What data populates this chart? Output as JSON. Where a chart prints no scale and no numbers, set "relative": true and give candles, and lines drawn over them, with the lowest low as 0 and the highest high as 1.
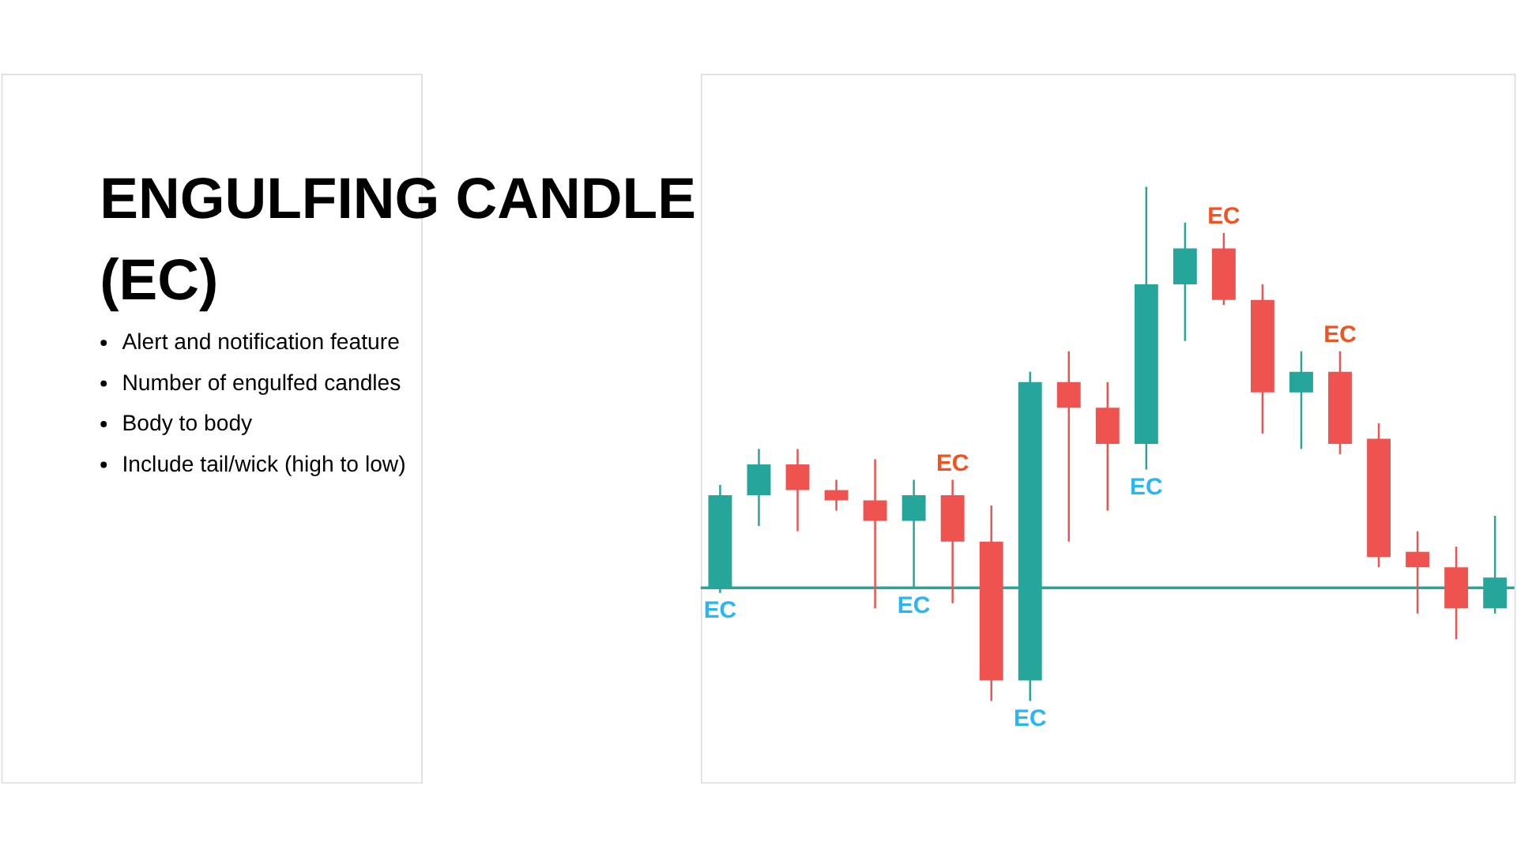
{
  "chart_data": [
    {
      "type": "other",
      "title": "ENGULFING CANDLE (EC)",
      "annotations": [
        "Alert and notification feature",
        "Number of engulfed candles",
        "Body to body",
        "Include tail/wick (high to low)"
      ]
    },
    {
      "type": "candlestick",
      "relative": true,
      "categories": [
        null,
        null,
        null,
        null,
        null,
        null,
        null,
        null,
        null,
        null,
        null,
        null,
        null,
        null,
        null,
        null,
        null,
        null,
        null,
        null,
        null
      ],
      "ohlc": [
        [
          0.22,
          0.42,
          0.21,
          0.4
        ],
        [
          0.4,
          0.49,
          0.34,
          0.46
        ],
        [
          0.46,
          0.49,
          0.33,
          0.41
        ],
        [
          0.41,
          0.43,
          0.37,
          0.39
        ],
        [
          0.39,
          0.47,
          0.18,
          0.35
        ],
        [
          0.35,
          0.43,
          0.22,
          0.4
        ],
        [
          0.4,
          0.43,
          0.19,
          0.31
        ],
        [
          0.31,
          0.38,
          0.0,
          0.04
        ],
        [
          0.04,
          0.64,
          0.0,
          0.62
        ],
        [
          0.62,
          0.68,
          0.31,
          0.57
        ],
        [
          0.57,
          0.62,
          0.37,
          0.5
        ],
        [
          0.5,
          1.0,
          0.45,
          0.81
        ],
        [
          0.81,
          0.93,
          0.7,
          0.88
        ],
        [
          0.88,
          0.91,
          0.77,
          0.78
        ],
        [
          0.78,
          0.81,
          0.52,
          0.6
        ],
        [
          0.6,
          0.68,
          0.49,
          0.64
        ],
        [
          0.64,
          0.68,
          0.48,
          0.5
        ],
        [
          0.51,
          0.54,
          0.26,
          0.28
        ],
        [
          0.29,
          0.33,
          0.17,
          0.26
        ],
        [
          0.26,
          0.3,
          0.12,
          0.18
        ],
        [
          0.18,
          0.36,
          0.17,
          0.24
        ]
      ],
      "colors": [
        "#26a69a",
        "#26a69a",
        "#ef5350",
        "#ef5350",
        "#ef5350",
        "#26a69a",
        "#ef5350",
        "#ef5350",
        "#26a69a",
        "#ef5350",
        "#ef5350",
        "#26a69a",
        "#26a69a",
        "#ef5350",
        "#ef5350",
        "#26a69a",
        "#ef5350",
        "#ef5350",
        "#ef5350",
        "#ef5350",
        "#26a69a"
      ],
      "value_labels": [
        "EC",
        null,
        null,
        null,
        null,
        "EC",
        "EC",
        null,
        "EC",
        null,
        null,
        "EC",
        null,
        "EC",
        null,
        null,
        "EC",
        null,
        null,
        null,
        null
      ],
      "ref_lines": [
        {
          "axis": "y",
          "value": 0.22,
          "color": "#26a69a"
        }
      ]
    }
  ]
}
